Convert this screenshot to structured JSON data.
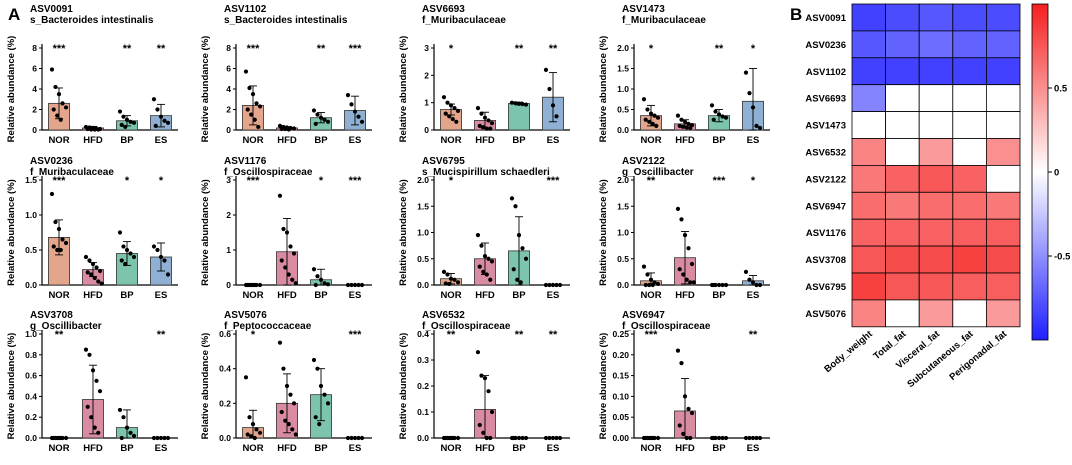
{
  "panel_a_label": "A",
  "panel_b_label": "B",
  "colors": {
    "NOR": "#e3a58c",
    "HFD": "#d98ca1",
    "BP": "#7cc4ad",
    "ES": "#8fb0d2",
    "heat_low": "#1f1fff",
    "heat_mid": "#ffffff",
    "heat_high": "#f51f1f"
  },
  "chart_data": [
    {
      "type": "bar",
      "id": "ASV0091",
      "title": "ASV0091",
      "subtitle": "s_Bacteroides intestinalis",
      "ylabel": "Relative abundance (%)",
      "categories": [
        "NOR",
        "HFD",
        "BP",
        "ES"
      ],
      "values": [
        2.6,
        0.2,
        0.9,
        1.4
      ],
      "sd": [
        1.5,
        0.15,
        0.5,
        1.1
      ],
      "points": [
        [
          5.9,
          4.2,
          3.5,
          2.6,
          2.2,
          2.0,
          1.4,
          1.0
        ],
        [
          0.3,
          0.25,
          0.2,
          0.15,
          0.1,
          0.1,
          0.05,
          0.05,
          0.05
        ],
        [
          1.8,
          1.3,
          1.0,
          0.8,
          0.7,
          0.5,
          0.3
        ],
        [
          3.0,
          2.0,
          1.3,
          0.9,
          0.7,
          0.4
        ]
      ],
      "significance": [
        "***",
        "",
        "**",
        "**"
      ],
      "ylim": [
        0,
        8
      ],
      "yticks": [
        0,
        2,
        4,
        6,
        8
      ]
    },
    {
      "type": "bar",
      "id": "ASV1102",
      "title": "ASV1102",
      "subtitle": "s_Bacteroides intestinalis",
      "ylabel": "Relative abundance (%)",
      "categories": [
        "NOR",
        "HFD",
        "BP",
        "ES"
      ],
      "values": [
        2.4,
        0.2,
        1.2,
        1.9
      ],
      "sd": [
        1.9,
        0.1,
        0.5,
        1.4
      ],
      "points": [
        [
          5.7,
          4.1,
          3.5,
          2.6,
          2.3,
          2.0,
          1.5,
          1.0,
          0.3
        ],
        [
          0.4,
          0.3,
          0.25,
          0.2,
          0.15,
          0.1,
          0.1,
          0.05
        ],
        [
          1.9,
          1.5,
          1.2,
          1.0,
          0.8,
          0.6
        ],
        [
          3.4,
          2.5,
          1.8,
          1.3,
          0.8
        ]
      ],
      "significance": [
        "***",
        "",
        "**",
        "***"
      ],
      "ylim": [
        0,
        8
      ],
      "yticks": [
        0,
        2,
        4,
        6,
        8
      ]
    },
    {
      "type": "bar",
      "id": "ASV6693",
      "title": "ASV6693",
      "subtitle": "f_Muribaculaceae",
      "ylabel": "Relative abundance (%)",
      "categories": [
        "NOR",
        "HFD",
        "BP",
        "ES"
      ],
      "values": [
        0.75,
        0.35,
        0.97,
        1.2
      ],
      "sd": [
        0.2,
        0.3,
        0.05,
        0.9
      ],
      "points": [
        [
          1.2,
          1.0,
          0.9,
          0.8,
          0.7,
          0.6,
          0.5,
          0.4,
          0.3
        ],
        [
          0.8,
          0.6,
          0.45,
          0.35,
          0.25,
          0.15,
          0.1,
          0.05,
          0.05
        ],
        [
          1.0,
          0.98,
          0.96,
          0.95,
          0.93
        ],
        [
          2.2,
          1.5,
          0.9,
          0.5
        ]
      ],
      "significance": [
        "*",
        "",
        "**",
        "**"
      ],
      "ylim": [
        0,
        3
      ],
      "yticks": [
        0,
        1,
        2,
        3
      ]
    },
    {
      "type": "bar",
      "id": "ASV1473",
      "title": "ASV1473",
      "subtitle": "f_Muribaculaceae",
      "ylabel": "Relative abundance (%)",
      "categories": [
        "NOR",
        "HFD",
        "BP",
        "ES"
      ],
      "values": [
        0.35,
        0.15,
        0.35,
        0.7
      ],
      "sd": [
        0.25,
        0.1,
        0.15,
        0.8
      ],
      "points": [
        [
          0.75,
          0.5,
          0.4,
          0.35,
          0.3,
          0.25,
          0.2,
          0.15,
          0.1
        ],
        [
          0.35,
          0.25,
          0.2,
          0.15,
          0.12,
          0.1,
          0.08,
          0.06,
          0.05
        ],
        [
          0.6,
          0.45,
          0.38,
          0.33,
          0.3,
          0.25
        ],
        [
          1.4,
          0.9,
          0.55,
          0.1,
          0.05
        ]
      ],
      "significance": [
        "*",
        "",
        "**",
        "*"
      ],
      "ylim": [
        0,
        2
      ],
      "yticks": [
        0.0,
        0.5,
        1.0,
        1.5,
        2.0
      ]
    },
    {
      "type": "bar",
      "id": "ASV0236",
      "title": "ASV0236",
      "subtitle": "f_Muribaculaceae",
      "ylabel": "Relative abundance (%)",
      "categories": [
        "NOR",
        "HFD",
        "BP",
        "ES"
      ],
      "values": [
        0.68,
        0.22,
        0.45,
        0.4
      ],
      "sd": [
        0.25,
        0.1,
        0.17,
        0.2
      ],
      "points": [
        [
          1.3,
          0.9,
          0.8,
          0.65,
          0.6,
          0.55,
          0.5,
          0.5
        ],
        [
          0.4,
          0.35,
          0.3,
          0.25,
          0.2,
          0.18,
          0.15,
          0.1,
          0.05,
          0.02
        ],
        [
          0.75,
          0.55,
          0.5,
          0.45,
          0.4,
          0.35,
          0.3
        ],
        [
          0.55,
          0.5,
          0.4,
          0.35,
          0.15
        ]
      ],
      "significance": [
        "***",
        "",
        "*",
        "*"
      ],
      "ylim": [
        0,
        1.5
      ],
      "yticks": [
        0.0,
        0.5,
        1.0,
        1.5
      ]
    },
    {
      "type": "bar",
      "id": "ASV1176",
      "title": "ASV1176",
      "subtitle": "f_Oscillospiraceae",
      "ylabel": "Relative abundance (%)",
      "categories": [
        "NOR",
        "HFD",
        "BP",
        "ES"
      ],
      "values": [
        0.0,
        0.95,
        0.15,
        0.0
      ],
      "sd": [
        0.0,
        0.95,
        0.3,
        0.0
      ],
      "points": [
        [
          0,
          0,
          0,
          0,
          0,
          0,
          0,
          0
        ],
        [
          2.55,
          1.6,
          1.5,
          1.1,
          0.9,
          0.7,
          0.5,
          0.3,
          0.15,
          0.05
        ],
        [
          0.45,
          0.25,
          0.15,
          0.05,
          0.02,
          0.0
        ],
        [
          0,
          0,
          0,
          0,
          0
        ]
      ],
      "significance": [
        "***",
        "",
        "*",
        "***"
      ],
      "ylim": [
        0,
        3
      ],
      "yticks": [
        0,
        1,
        2,
        3
      ]
    },
    {
      "type": "bar",
      "id": "ASV6795",
      "title": "ASV6795",
      "subtitle": "s_Mucispirillum schaedleri",
      "ylabel": "Relative abundance (%)",
      "categories": [
        "NOR",
        "HFD",
        "BP",
        "ES"
      ],
      "values": [
        0.12,
        0.5,
        0.65,
        0.0
      ],
      "sd": [
        0.1,
        0.3,
        0.65,
        0.0
      ],
      "points": [
        [
          0.25,
          0.2,
          0.12,
          0.1,
          0.05,
          0.03,
          0.02
        ],
        [
          0.95,
          0.75,
          0.55,
          0.5,
          0.45,
          0.35,
          0.25,
          0.2,
          0.1
        ],
        [
          1.65,
          1.5,
          0.95,
          0.7,
          0.5,
          0.3,
          0.1,
          0.05
        ],
        [
          0,
          0,
          0,
          0,
          0
        ]
      ],
      "significance": [
        "*",
        "",
        "",
        "***"
      ],
      "ylim": [
        0,
        2
      ],
      "yticks": [
        0.0,
        0.5,
        1.0,
        1.5,
        2.0
      ]
    },
    {
      "type": "bar",
      "id": "ASV2122",
      "title": "ASV2122",
      "subtitle": "g_Oscillibacter",
      "ylabel": "Relative abundance (%)",
      "categories": [
        "NOR",
        "HFD",
        "BP",
        "ES"
      ],
      "values": [
        0.08,
        0.52,
        0.0,
        0.08
      ],
      "sd": [
        0.15,
        0.5,
        0.0,
        0.1
      ],
      "points": [
        [
          0.35,
          0.2,
          0.1,
          0.05,
          0.02,
          0.0,
          0.0,
          0.0
        ],
        [
          1.45,
          1.25,
          0.95,
          0.7,
          0.4,
          0.3,
          0.2,
          0.1,
          0.05,
          0.05
        ],
        [
          0,
          0,
          0,
          0,
          0,
          0
        ],
        [
          0.25,
          0.1,
          0.05,
          0.0,
          0.0
        ]
      ],
      "significance": [
        "**",
        "",
        "***",
        "*"
      ],
      "ylim": [
        0,
        2
      ],
      "yticks": [
        0.0,
        0.5,
        1.0,
        1.5,
        2.0
      ]
    },
    {
      "type": "bar",
      "id": "ASV3708",
      "title": "ASV3708",
      "subtitle": "g_Oscillibacter",
      "ylabel": "Relative abundance (%)",
      "categories": [
        "NOR",
        "HFD",
        "BP",
        "ES"
      ],
      "values": [
        0.0,
        0.37,
        0.1,
        0.0
      ],
      "sd": [
        0.0,
        0.33,
        0.17,
        0.0
      ],
      "points": [
        [
          0,
          0,
          0,
          0,
          0,
          0,
          0,
          0
        ],
        [
          0.85,
          0.8,
          0.65,
          0.55,
          0.45,
          0.3,
          0.2,
          0.1,
          0.05
        ],
        [
          0.27,
          0.2,
          0.1,
          0.05,
          0.02,
          0.0
        ],
        [
          0,
          0,
          0,
          0,
          0
        ]
      ],
      "significance": [
        "**",
        "",
        "",
        "**"
      ],
      "ylim": [
        0,
        1
      ],
      "yticks": [
        0.0,
        0.2,
        0.4,
        0.6,
        0.8,
        1.0
      ]
    },
    {
      "type": "bar",
      "id": "ASV5076",
      "title": "ASV5076",
      "subtitle": "f_Peptococcaceae",
      "ylabel": "Relative abundance (%)",
      "categories": [
        "NOR",
        "HFD",
        "BP",
        "ES"
      ],
      "values": [
        0.06,
        0.2,
        0.25,
        0.0
      ],
      "sd": [
        0.1,
        0.17,
        0.15,
        0.0
      ],
      "points": [
        [
          0.35,
          0.12,
          0.08,
          0.05,
          0.03,
          0.02,
          0.01,
          0.0
        ],
        [
          0.55,
          0.4,
          0.3,
          0.25,
          0.2,
          0.15,
          0.1,
          0.08,
          0.05,
          0.02
        ],
        [
          0.45,
          0.4,
          0.3,
          0.25,
          0.2,
          0.12,
          0.08
        ],
        [
          0,
          0,
          0,
          0,
          0
        ]
      ],
      "significance": [
        "*",
        "",
        "",
        "***"
      ],
      "ylim": [
        0,
        0.6
      ],
      "yticks": [
        0.0,
        0.2,
        0.4,
        0.6
      ]
    },
    {
      "type": "bar",
      "id": "ASV6532",
      "title": "ASV6532",
      "subtitle": "f_Oscillospiraceae",
      "ylabel": "Relative abundance (%)",
      "categories": [
        "NOR",
        "HFD",
        "BP",
        "ES"
      ],
      "values": [
        0.0,
        0.11,
        0.0,
        0.0
      ],
      "sd": [
        0.0,
        0.13,
        0.0,
        0.0
      ],
      "points": [
        [
          0,
          0,
          0,
          0,
          0,
          0,
          0,
          0
        ],
        [
          0.33,
          0.24,
          0.23,
          0.18,
          0.1,
          0.05,
          0.02,
          0.0,
          0.0
        ],
        [
          0,
          0,
          0,
          0,
          0,
          0
        ],
        [
          0,
          0,
          0,
          0,
          0
        ]
      ],
      "significance": [
        "**",
        "",
        "**",
        "**"
      ],
      "ylim": [
        0,
        0.4
      ],
      "yticks": [
        0.0,
        0.1,
        0.2,
        0.3,
        0.4
      ]
    },
    {
      "type": "bar",
      "id": "ASV6947",
      "title": "ASV6947",
      "subtitle": "f_Oscillospiraceae",
      "ylabel": "Relative abundance (%)",
      "categories": [
        "NOR",
        "HFD",
        "BP",
        "ES"
      ],
      "values": [
        0.0,
        0.065,
        0.0,
        0.0
      ],
      "sd": [
        0.0,
        0.078,
        0.0,
        0.0
      ],
      "points": [
        [
          0,
          0,
          0,
          0,
          0,
          0,
          0,
          0
        ],
        [
          0.21,
          0.18,
          0.1,
          0.07,
          0.06,
          0.03,
          0.01,
          0.0,
          0.0
        ],
        [
          0,
          0,
          0,
          0,
          0,
          0
        ],
        [
          0,
          0,
          0,
          0,
          0
        ]
      ],
      "significance": [
        "***",
        "",
        "",
        "**"
      ],
      "ylim": [
        0,
        0.25
      ],
      "yticks": [
        0.0,
        0.05,
        0.1,
        0.15,
        0.2,
        0.25
      ]
    },
    {
      "type": "heatmap",
      "id": "correlation-heatmap",
      "rows": [
        "ASV0091",
        "ASV0236",
        "ASV1102",
        "ASV6693",
        "ASV1473",
        "ASV6532",
        "ASV2122",
        "ASV6947",
        "ASV1176",
        "ASV3708",
        "ASV6795",
        "ASV5076"
      ],
      "columns": [
        "Body_weight",
        "Total_fat",
        "Visceral_fat",
        "Subcutaneous_fat",
        "Perigonadal_fat"
      ],
      "values": [
        [
          -0.85,
          -0.8,
          -0.75,
          -0.8,
          -0.8
        ],
        [
          -0.75,
          -0.7,
          -0.65,
          -0.7,
          -0.7
        ],
        [
          -0.85,
          -0.85,
          -0.85,
          -0.85,
          -0.85
        ],
        [
          -0.55,
          0.0,
          0.0,
          0.0,
          0.0
        ],
        [
          0.0,
          0.0,
          0.0,
          0.0,
          0.0
        ],
        [
          0.55,
          0.0,
          0.45,
          0.0,
          0.5
        ],
        [
          0.6,
          0.7,
          0.75,
          0.7,
          0.0
        ],
        [
          0.65,
          0.6,
          0.65,
          0.65,
          0.6
        ],
        [
          0.7,
          0.7,
          0.7,
          0.72,
          0.72
        ],
        [
          0.75,
          0.8,
          0.8,
          0.85,
          0.8
        ],
        [
          0.85,
          0.75,
          0.75,
          0.72,
          0.72
        ],
        [
          0.55,
          0.0,
          0.45,
          0.0,
          0.45
        ]
      ],
      "colorbar_ticks": [
        0.5,
        0,
        -0.5
      ],
      "colorbar_tick_labels": [
        "0.5",
        "0",
        "-0.5"
      ],
      "range": [
        -1,
        1
      ]
    }
  ]
}
